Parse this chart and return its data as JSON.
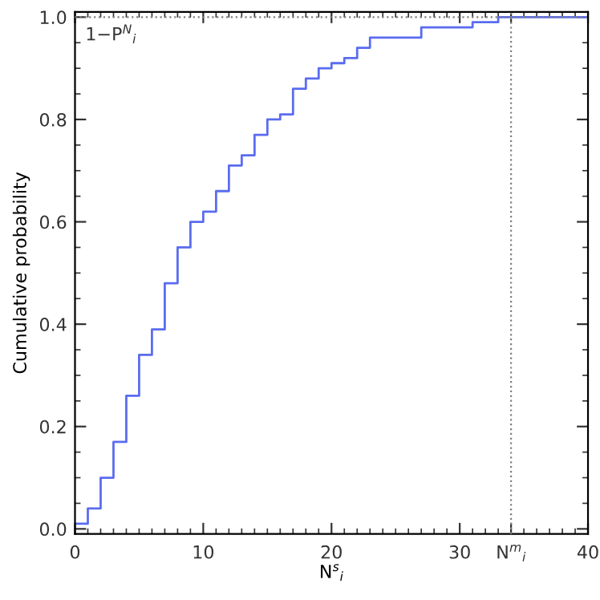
{
  "chart_data": {
    "type": "step",
    "xlabel": "N$^{s}$$_{i}$",
    "ylabel": "Cumulative probability",
    "annotations": [
      "1−P$^{N}$$_{i}$"
    ],
    "x": [
      0,
      1,
      2,
      3,
      4,
      5,
      6,
      7,
      8,
      9,
      10,
      11,
      12,
      13,
      14,
      15,
      16,
      17,
      18,
      19,
      20,
      21,
      22,
      23,
      27,
      31,
      33,
      40
    ],
    "series": [
      {
        "color": "#5a6cf0",
        "values": [
          0.01,
          0.04,
          0.1,
          0.17,
          0.26,
          0.34,
          0.39,
          0.48,
          0.55,
          0.6,
          0.62,
          0.66,
          0.71,
          0.73,
          0.77,
          0.8,
          0.81,
          0.86,
          0.88,
          0.9,
          0.91,
          0.92,
          0.94,
          0.96,
          0.98,
          0.99,
          1.0,
          1.0
        ]
      }
    ],
    "xlim": [
      0,
      40
    ],
    "ylim": [
      -0.01,
      1.01
    ],
    "xticks": [
      0,
      10,
      20,
      30,
      {
        "value": 34,
        "label": "N$^{m}$$_{i}$"
      },
      40
    ],
    "yticks": [
      {
        "value": 0,
        "label": "0.0"
      },
      {
        "value": 0.2,
        "label": "0.2"
      },
      {
        "value": 0.4,
        "label": "0.4"
      },
      {
        "value": 0.6,
        "label": "0.6"
      },
      {
        "value": 0.8,
        "label": "0.8"
      },
      {
        "value": 1.0,
        "label": "1.0"
      }
    ],
    "ref_lines": [
      {
        "axis": "x",
        "value": 34,
        "color": "#808080",
        "line_style": "dotted"
      },
      {
        "axis": "y",
        "value": 1.0,
        "color": "#808080",
        "line_style": "dotted"
      }
    ],
    "grid": false,
    "legend": false
  }
}
